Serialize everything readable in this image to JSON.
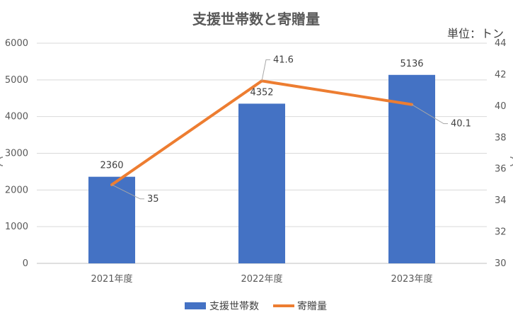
{
  "chart_data": {
    "type": "bar",
    "title": "支援世帯数と寄贈量",
    "unit_label": "単位：トン",
    "categories": [
      "2021年度",
      "2022年度",
      "2023年度"
    ],
    "series": [
      {
        "name": "支援世帯数",
        "type": "bar",
        "axis": "left",
        "values": [
          2360,
          4352,
          5136
        ],
        "color": "#4472C4"
      },
      {
        "name": "寄贈量",
        "type": "line",
        "axis": "right",
        "values": [
          35,
          41.6,
          40.1
        ],
        "color": "#ED7D31"
      }
    ],
    "y_left": {
      "min": 0,
      "max": 6000,
      "ticks": [
        0,
        1000,
        2000,
        3000,
        4000,
        5000,
        6000
      ]
    },
    "y_right": {
      "min": 30,
      "max": 44,
      "ticks": [
        30,
        32,
        34,
        36,
        38,
        40,
        42,
        44
      ]
    },
    "grid": true,
    "legend_position": "bottom"
  }
}
